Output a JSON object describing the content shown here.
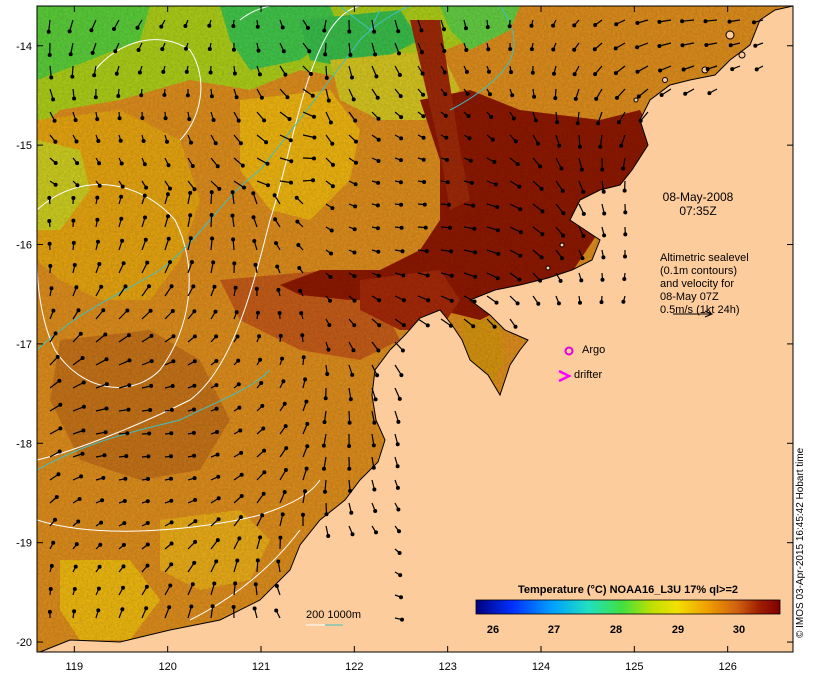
{
  "map": {
    "x_ticks": [
      "119",
      "120",
      "121",
      "122",
      "123",
      "124",
      "125",
      "126"
    ],
    "y_ticks": [
      "-14",
      "-15",
      "-16",
      "-17",
      "-18",
      "-19",
      "-20"
    ],
    "x_range": [
      118.6,
      126.7
    ],
    "y_range": [
      -20.1,
      -13.6
    ],
    "region": "Kimberley coast, north-west Australia",
    "colors": {
      "land": "#fdcc9d",
      "contour": "#ffffff",
      "isobath": "#40c0c0",
      "argo": "#e000e0",
      "drifter": "#ff00ff",
      "vectors": "#000000"
    }
  },
  "annotations": {
    "date": "08-May-2008",
    "time": "07:35Z",
    "altimetry_lines": [
      "Altimetric sealevel",
      "(0.1m contours)",
      "and velocity for",
      "08-May 07Z",
      "0.5m/s (1kt 24h)"
    ],
    "argo_label": "Argo",
    "drifter_label": "drifter",
    "isobath_label": "200  1000m"
  },
  "colorbar": {
    "title": "Temperature (°C) NOAA16_L3U 17% ql>=2",
    "ticks": [
      "26",
      "27",
      "28",
      "29",
      "30"
    ],
    "range": [
      25.8,
      30.6
    ],
    "colors": [
      "#000080",
      "#0040ff",
      "#00c0ff",
      "#40e0a0",
      "#60e020",
      "#e0e000",
      "#f0a000",
      "#d06000",
      "#a02000",
      "#800000"
    ]
  },
  "credit": "© IMOS 03-Apr-2015 16:45:42 Hobart time"
}
